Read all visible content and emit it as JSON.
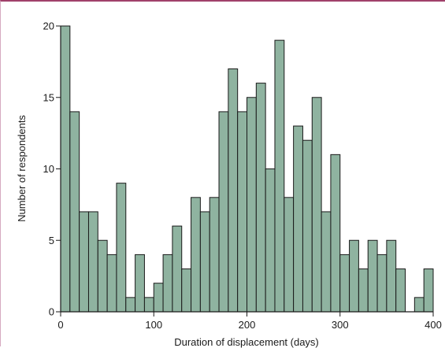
{
  "colors": {
    "bar_fill": "#8fb3a0",
    "bar_stroke": "#1a1a1a",
    "axis": "#1a1a1a",
    "frame_accent": "#a0406a"
  },
  "chart_data": {
    "type": "bar",
    "title": "",
    "xlabel": "Duration of displacement (days)",
    "ylabel": "Number of respondents",
    "xlim": [
      0,
      400
    ],
    "ylim": [
      0,
      20
    ],
    "bin_width": 10,
    "x_ticks": [
      0,
      100,
      200,
      300,
      400
    ],
    "y_ticks": [
      0,
      5,
      10,
      15,
      20
    ],
    "grid": false,
    "legend": "none",
    "bins": [
      {
        "x0": 0,
        "x1": 10,
        "value": 20
      },
      {
        "x0": 10,
        "x1": 20,
        "value": 14
      },
      {
        "x0": 20,
        "x1": 30,
        "value": 7
      },
      {
        "x0": 30,
        "x1": 40,
        "value": 7
      },
      {
        "x0": 40,
        "x1": 50,
        "value": 5
      },
      {
        "x0": 50,
        "x1": 60,
        "value": 4
      },
      {
        "x0": 60,
        "x1": 70,
        "value": 9
      },
      {
        "x0": 70,
        "x1": 80,
        "value": 1
      },
      {
        "x0": 80,
        "x1": 90,
        "value": 4
      },
      {
        "x0": 90,
        "x1": 100,
        "value": 1
      },
      {
        "x0": 100,
        "x1": 110,
        "value": 2
      },
      {
        "x0": 110,
        "x1": 120,
        "value": 4
      },
      {
        "x0": 120,
        "x1": 130,
        "value": 6
      },
      {
        "x0": 130,
        "x1": 140,
        "value": 3
      },
      {
        "x0": 140,
        "x1": 150,
        "value": 8
      },
      {
        "x0": 150,
        "x1": 160,
        "value": 7
      },
      {
        "x0": 160,
        "x1": 170,
        "value": 8
      },
      {
        "x0": 170,
        "x1": 180,
        "value": 14
      },
      {
        "x0": 180,
        "x1": 190,
        "value": 17
      },
      {
        "x0": 190,
        "x1": 200,
        "value": 14
      },
      {
        "x0": 200,
        "x1": 210,
        "value": 15
      },
      {
        "x0": 210,
        "x1": 220,
        "value": 16
      },
      {
        "x0": 220,
        "x1": 230,
        "value": 10
      },
      {
        "x0": 230,
        "x1": 240,
        "value": 19
      },
      {
        "x0": 240,
        "x1": 250,
        "value": 8
      },
      {
        "x0": 250,
        "x1": 260,
        "value": 13
      },
      {
        "x0": 260,
        "x1": 270,
        "value": 12
      },
      {
        "x0": 270,
        "x1": 280,
        "value": 15
      },
      {
        "x0": 280,
        "x1": 290,
        "value": 7
      },
      {
        "x0": 290,
        "x1": 300,
        "value": 11
      },
      {
        "x0": 300,
        "x1": 310,
        "value": 4
      },
      {
        "x0": 310,
        "x1": 320,
        "value": 5
      },
      {
        "x0": 320,
        "x1": 330,
        "value": 3
      },
      {
        "x0": 330,
        "x1": 340,
        "value": 5
      },
      {
        "x0": 340,
        "x1": 350,
        "value": 4
      },
      {
        "x0": 350,
        "x1": 360,
        "value": 5
      },
      {
        "x0": 360,
        "x1": 370,
        "value": 3
      },
      {
        "x0": 370,
        "x1": 380,
        "value": 0
      },
      {
        "x0": 380,
        "x1": 390,
        "value": 1
      },
      {
        "x0": 390,
        "x1": 400,
        "value": 3
      }
    ]
  }
}
